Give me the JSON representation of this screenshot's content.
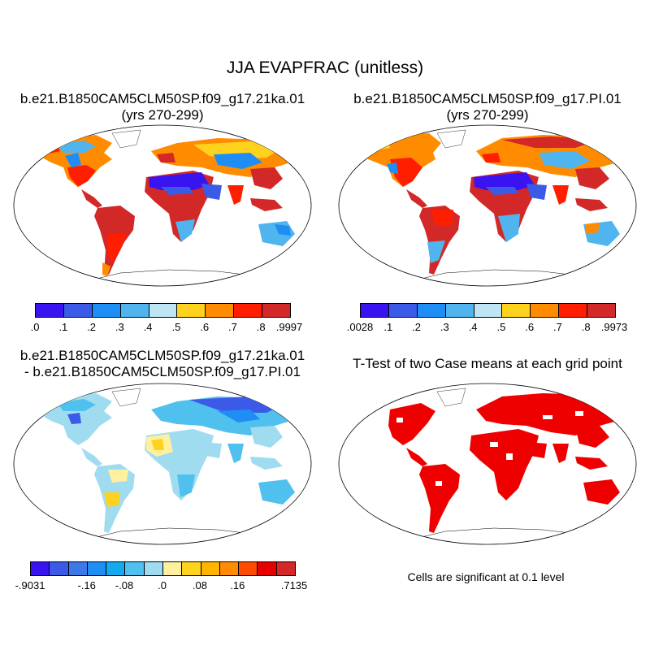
{
  "figure": {
    "title": "JJA EVAPFRAC (unitless)",
    "colors": {
      "land_line": "#000000",
      "sig_red": "#ee0000"
    }
  },
  "panels": {
    "top_left": {
      "title_line1": "b.e21.B1850CAM5CLM50SP.f09_g17.21ka.01",
      "title_line2": "(yrs 270-299)",
      "colorbar": {
        "colors": [
          "#3a14f0",
          "#3c5ae8",
          "#1e8ef5",
          "#50b4ee",
          "#bfe4f4",
          "#ffd21e",
          "#ff8c00",
          "#ff1e00",
          "#d22828"
        ],
        "labels": [
          ".0",
          ".1",
          ".2",
          ".3",
          ".4",
          ".5",
          ".6",
          ".7",
          ".8",
          ".9997"
        ]
      }
    },
    "top_right": {
      "title_line1": "b.e21.B1850CAM5CLM50SP.f09_g17.PI.01",
      "title_line2": "(yrs 270-299)",
      "colorbar": {
        "colors": [
          "#3a14f0",
          "#3c5ae8",
          "#1e8ef5",
          "#50b4ee",
          "#bfe4f4",
          "#ffd21e",
          "#ff8c00",
          "#ff1e00",
          "#d22828"
        ],
        "labels": [
          ".0028",
          ".1",
          ".2",
          ".3",
          ".4",
          ".5",
          ".6",
          ".7",
          ".8",
          ".9973"
        ]
      }
    },
    "bottom_left": {
      "title_line1": "b.e21.B1850CAM5CLM50SP.f09_g17.21ka.01",
      "title_line2": "- b.e21.B1850CAM5CLM50SP.f09_g17.PI.01",
      "colorbar": {
        "colors": [
          "#3a14f0",
          "#3c5ae8",
          "#3c78e6",
          "#1e8ef5",
          "#14aaee",
          "#50c0ee",
          "#a0dcf0",
          "#fff0a0",
          "#ffd21e",
          "#ffb400",
          "#ff8c00",
          "#ff4b00",
          "#e60000",
          "#d22828"
        ],
        "labels": [
          "-.9031",
          "-.16",
          "-.08",
          ".0",
          ".08",
          ".16",
          ".7135"
        ]
      }
    },
    "bottom_right": {
      "title": "T-Test of two Case means at each grid point",
      "note": "Cells are significant at 0.1 level"
    }
  }
}
